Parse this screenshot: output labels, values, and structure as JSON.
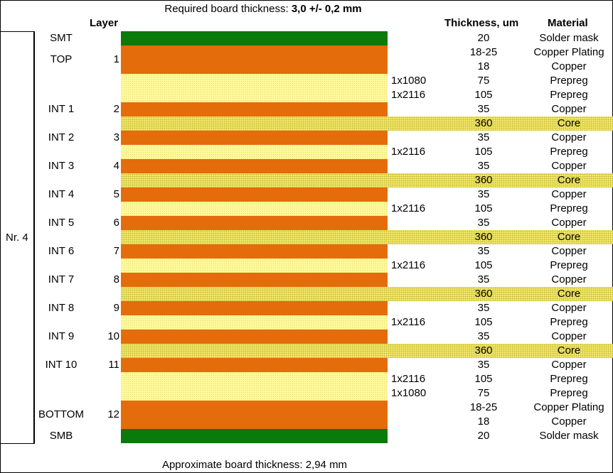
{
  "title": {
    "prefix": "Required board thickness: ",
    "value": "3,0 +/- 0,2 mm"
  },
  "headers": {
    "layer": "Layer",
    "thickness": "Thickness, um",
    "material": "Material"
  },
  "group_label": "Nr. 4",
  "colors": {
    "solder_mask": "#0a7a0a",
    "copper": "#e46c0a",
    "prepreg": "#fff99a",
    "core": "#f2e86a"
  },
  "layer_labels": [
    {
      "name": "SMT",
      "num": ""
    },
    {
      "name": "TOP",
      "num": "1"
    },
    {
      "name": "INT 1",
      "num": "2"
    },
    {
      "name": "INT 2",
      "num": "3"
    },
    {
      "name": "INT 3",
      "num": "4"
    },
    {
      "name": "INT 4",
      "num": "5"
    },
    {
      "name": "INT 5",
      "num": "6"
    },
    {
      "name": "INT 6",
      "num": "7"
    },
    {
      "name": "INT 7",
      "num": "8"
    },
    {
      "name": "INT 8",
      "num": "9"
    },
    {
      "name": "INT 9",
      "num": "10"
    },
    {
      "name": "INT 10",
      "num": "11"
    },
    {
      "name": "BOTTOM",
      "num": "12"
    },
    {
      "name": "SMB",
      "num": ""
    }
  ],
  "stack_rows": [
    {
      "type": "mask",
      "style": "",
      "thickness": "20",
      "material": "Solder mask"
    },
    {
      "type": "copper",
      "style": "",
      "thickness": "18-25",
      "material": "Copper Plating"
    },
    {
      "type": "copper",
      "style": "",
      "thickness": "18",
      "material": "Copper"
    },
    {
      "type": "prepreg",
      "style": "1x1080",
      "thickness": "75",
      "material": "Prepreg"
    },
    {
      "type": "prepreg",
      "style": "1x2116",
      "thickness": "105",
      "material": "Prepreg"
    },
    {
      "type": "copper",
      "style": "",
      "thickness": "35",
      "material": "Copper"
    },
    {
      "type": "core",
      "style": "",
      "thickness": "360",
      "material": "Core"
    },
    {
      "type": "copper",
      "style": "",
      "thickness": "35",
      "material": "Copper"
    },
    {
      "type": "prepreg",
      "style": "1x2116",
      "thickness": "105",
      "material": "Prepreg"
    },
    {
      "type": "copper",
      "style": "",
      "thickness": "35",
      "material": "Copper"
    },
    {
      "type": "core",
      "style": "",
      "thickness": "360",
      "material": "Core"
    },
    {
      "type": "copper",
      "style": "",
      "thickness": "35",
      "material": "Copper"
    },
    {
      "type": "prepreg",
      "style": "1x2116",
      "thickness": "105",
      "material": "Prepreg"
    },
    {
      "type": "copper",
      "style": "",
      "thickness": "35",
      "material": "Copper"
    },
    {
      "type": "core",
      "style": "",
      "thickness": "360",
      "material": "Core"
    },
    {
      "type": "copper",
      "style": "",
      "thickness": "35",
      "material": "Copper"
    },
    {
      "type": "prepreg",
      "style": "1x2116",
      "thickness": "105",
      "material": "Prepreg"
    },
    {
      "type": "copper",
      "style": "",
      "thickness": "35",
      "material": "Copper"
    },
    {
      "type": "core",
      "style": "",
      "thickness": "360",
      "material": "Core"
    },
    {
      "type": "copper",
      "style": "",
      "thickness": "35",
      "material": "Copper"
    },
    {
      "type": "prepreg",
      "style": "1x2116",
      "thickness": "105",
      "material": "Prepreg"
    },
    {
      "type": "copper",
      "style": "",
      "thickness": "35",
      "material": "Copper"
    },
    {
      "type": "core",
      "style": "",
      "thickness": "360",
      "material": "Core"
    },
    {
      "type": "copper",
      "style": "",
      "thickness": "35",
      "material": "Copper"
    },
    {
      "type": "prepreg",
      "style": "1x2116",
      "thickness": "105",
      "material": "Prepreg"
    },
    {
      "type": "prepreg",
      "style": "1x1080",
      "thickness": "75",
      "material": "Prepreg"
    },
    {
      "type": "copper",
      "style": "",
      "thickness": "18-25",
      "material": "Copper Plating"
    },
    {
      "type": "copper",
      "style": "",
      "thickness": "18",
      "material": "Copper"
    },
    {
      "type": "mask",
      "style": "",
      "thickness": "20",
      "material": "Solder mask"
    }
  ],
  "footer": "Approximate board thickness: 2,94 mm"
}
